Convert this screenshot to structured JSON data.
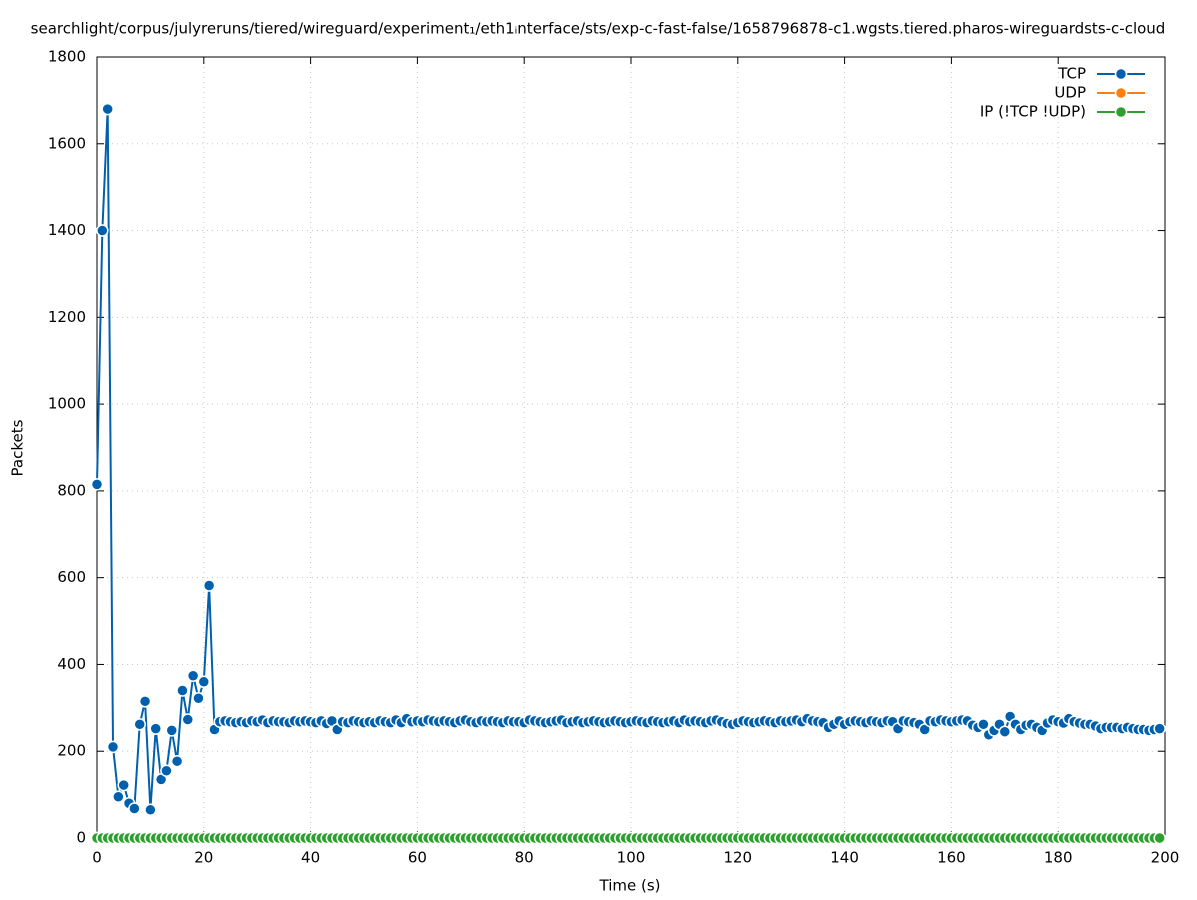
{
  "chart_data": {
    "type": "line",
    "title": "searchlight/corpus/julyreruns/tiered/wireguard/experiment₁/eth1ᵢnterface/sts/exp-c-fast-false/1658796878-c1.wgsts.tiered.pharos-wireguardsts-c-cloud",
    "x_label": "Time (s)",
    "y_label": "Packets",
    "x": [
      0,
      1,
      2,
      3,
      4,
      5,
      6,
      7,
      8,
      9,
      10,
      11,
      12,
      13,
      14,
      15,
      16,
      17,
      18,
      19,
      20,
      21,
      22,
      23,
      24,
      25,
      26,
      27,
      28,
      29,
      30,
      31,
      32,
      33,
      34,
      35,
      36,
      37,
      38,
      39,
      40,
      41,
      42,
      43,
      44,
      45,
      46,
      47,
      48,
      49,
      50,
      51,
      52,
      53,
      54,
      55,
      56,
      57,
      58,
      59,
      60,
      61,
      62,
      63,
      64,
      65,
      66,
      67,
      68,
      69,
      70,
      71,
      72,
      73,
      74,
      75,
      76,
      77,
      78,
      79,
      80,
      81,
      82,
      83,
      84,
      85,
      86,
      87,
      88,
      89,
      90,
      91,
      92,
      93,
      94,
      95,
      96,
      97,
      98,
      99,
      100,
      101,
      102,
      103,
      104,
      105,
      106,
      107,
      108,
      109,
      110,
      111,
      112,
      113,
      114,
      115,
      116,
      117,
      118,
      119,
      120,
      121,
      122,
      123,
      124,
      125,
      126,
      127,
      128,
      129,
      130,
      131,
      132,
      133,
      134,
      135,
      136,
      137,
      138,
      139,
      140,
      141,
      142,
      143,
      144,
      145,
      146,
      147,
      148,
      149,
      150,
      151,
      152,
      153,
      154,
      155,
      156,
      157,
      158,
      159,
      160,
      161,
      162,
      163,
      164,
      165,
      166,
      167,
      168,
      169,
      170,
      171,
      172,
      173,
      174,
      175,
      176,
      177,
      178,
      179,
      180,
      181,
      182,
      183,
      184,
      185,
      186,
      187,
      188,
      189,
      190,
      191,
      192,
      193,
      194,
      195,
      196,
      197,
      198,
      199
    ],
    "series": [
      {
        "name": "TCP",
        "color": "#0060ad",
        "values": [
          815,
          1400,
          1680,
          210,
          95,
          122,
          80,
          68,
          262,
          315,
          65,
          252,
          135,
          155,
          248,
          177,
          340,
          273,
          374,
          322,
          360,
          582,
          250,
          268,
          270,
          268,
          266,
          268,
          266,
          270,
          268,
          272,
          266,
          270,
          268,
          268,
          266,
          270,
          268,
          270,
          268,
          266,
          270,
          264,
          270,
          250,
          268,
          266,
          270,
          268,
          266,
          268,
          266,
          270,
          268,
          266,
          272,
          266,
          275,
          268,
          270,
          268,
          272,
          270,
          268,
          270,
          268,
          266,
          270,
          272,
          268,
          266,
          270,
          268,
          270,
          268,
          266,
          270,
          268,
          268,
          266,
          272,
          270,
          268,
          266,
          268,
          270,
          272,
          266,
          268,
          270,
          266,
          268,
          270,
          268,
          266,
          268,
          270,
          268,
          266,
          268,
          270,
          268,
          266,
          270,
          268,
          266,
          268,
          270,
          266,
          272,
          268,
          270,
          268,
          266,
          270,
          272,
          268,
          264,
          262,
          266,
          270,
          268,
          266,
          268,
          270,
          268,
          266,
          270,
          268,
          270,
          272,
          268,
          275,
          270,
          268,
          266,
          255,
          262,
          270,
          262,
          268,
          270,
          268,
          266,
          270,
          268,
          266,
          270,
          268,
          252,
          270,
          268,
          266,
          262,
          250,
          270,
          268,
          272,
          270,
          268,
          270,
          272,
          270,
          260,
          255,
          262,
          238,
          248,
          262,
          245,
          280,
          262,
          250,
          260,
          262,
          255,
          248,
          265,
          272,
          268,
          265,
          275,
          268,
          265,
          262,
          262,
          258,
          252,
          255,
          255,
          255,
          252,
          255,
          252,
          250,
          250,
          248,
          250,
          252
        ]
      },
      {
        "name": "UDP",
        "color": "#ff7f0e",
        "values": [
          0,
          0,
          0,
          0,
          0,
          0,
          0,
          0,
          0,
          0,
          0,
          0,
          0,
          0,
          0,
          0,
          0,
          0,
          0,
          0,
          0,
          0,
          0,
          0,
          0,
          0,
          0,
          0,
          0,
          0,
          0,
          0,
          0,
          0,
          0,
          0,
          0,
          0,
          0,
          0,
          0,
          0,
          0,
          0,
          0,
          0,
          0,
          0,
          0,
          0,
          0,
          0,
          0,
          0,
          0,
          0,
          0,
          0,
          0,
          0,
          0,
          0,
          0,
          0,
          0,
          0,
          0,
          0,
          0,
          0,
          0,
          0,
          0,
          0,
          0,
          0,
          0,
          0,
          0,
          0,
          0,
          0,
          0,
          0,
          0,
          0,
          0,
          0,
          0,
          0,
          0,
          0,
          0,
          0,
          0,
          0,
          0,
          0,
          0,
          0,
          0,
          0,
          0,
          0,
          0,
          0,
          0,
          0,
          0,
          0,
          0,
          0,
          0,
          0,
          0,
          0,
          0,
          0,
          0,
          0,
          0,
          0,
          0,
          0,
          0,
          0,
          0,
          0,
          0,
          0,
          0,
          0,
          0,
          0,
          0,
          0,
          0,
          0,
          0,
          0,
          0,
          0,
          0,
          0,
          0,
          0,
          0,
          0,
          0,
          0,
          0,
          0,
          0,
          0,
          0,
          0,
          0,
          0,
          0,
          0,
          0,
          0,
          0,
          0,
          0,
          0,
          0,
          0,
          0,
          0,
          0,
          0,
          0,
          0,
          0,
          0,
          0,
          0,
          0,
          0,
          0,
          0,
          0,
          0,
          0,
          0,
          0,
          0,
          0,
          0,
          0,
          0,
          0,
          0,
          0,
          0,
          0,
          0,
          0,
          0
        ]
      },
      {
        "name": "IP (!TCP  !UDP)",
        "color": "#2ca02c",
        "values": [
          0,
          0,
          0,
          0,
          0,
          0,
          0,
          0,
          0,
          0,
          0,
          0,
          0,
          0,
          0,
          0,
          0,
          0,
          0,
          0,
          0,
          0,
          0,
          0,
          0,
          0,
          0,
          0,
          0,
          0,
          0,
          0,
          0,
          0,
          0,
          0,
          0,
          0,
          0,
          0,
          0,
          0,
          0,
          0,
          0,
          0,
          0,
          0,
          0,
          0,
          0,
          0,
          0,
          0,
          0,
          0,
          0,
          0,
          0,
          0,
          0,
          0,
          0,
          0,
          0,
          0,
          0,
          0,
          0,
          0,
          0,
          0,
          0,
          0,
          0,
          0,
          0,
          0,
          0,
          0,
          0,
          0,
          0,
          0,
          0,
          0,
          0,
          0,
          0,
          0,
          0,
          0,
          0,
          0,
          0,
          0,
          0,
          0,
          0,
          0,
          0,
          0,
          0,
          0,
          0,
          0,
          0,
          0,
          0,
          0,
          0,
          0,
          0,
          0,
          0,
          0,
          0,
          0,
          0,
          0,
          0,
          0,
          0,
          0,
          0,
          0,
          0,
          0,
          0,
          0,
          0,
          0,
          0,
          0,
          0,
          0,
          0,
          0,
          0,
          0,
          0,
          0,
          0,
          0,
          0,
          0,
          0,
          0,
          0,
          0,
          0,
          0,
          0,
          0,
          0,
          0,
          0,
          0,
          0,
          0,
          0,
          0,
          0,
          0,
          0,
          0,
          0,
          0,
          0,
          0,
          0,
          0,
          0,
          0,
          0,
          0,
          0,
          0,
          0,
          0,
          0,
          0,
          0,
          0,
          0,
          0,
          0,
          0,
          0,
          0,
          0,
          0,
          0,
          0,
          0,
          0,
          0,
          0,
          0,
          0
        ]
      }
    ],
    "xlim": [
      0,
      200
    ],
    "xticks": [
      0,
      20,
      40,
      60,
      80,
      100,
      120,
      140,
      160,
      180,
      200
    ],
    "ylim": [
      0,
      1800
    ],
    "yticks": [
      0,
      200,
      400,
      600,
      800,
      1000,
      1200,
      1400,
      1600,
      1800
    ],
    "grid": true,
    "legend": "top-right"
  }
}
